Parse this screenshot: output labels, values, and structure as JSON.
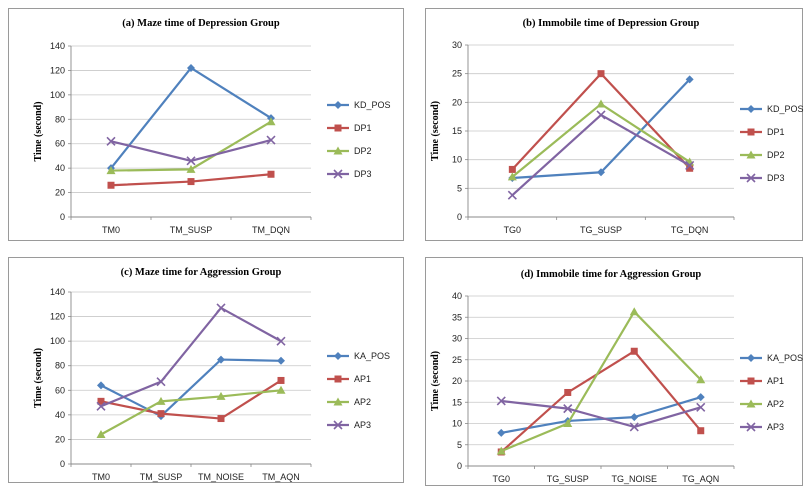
{
  "chart_data": [
    {
      "type": "line",
      "title": "(a) Maze time of Depression Group",
      "xlabel": "",
      "ylabel": "Time (second)",
      "categories": [
        "TM0",
        "TM_SUSP",
        "TM_DQN"
      ],
      "ylim": [
        0,
        140
      ],
      "yticks": [
        0,
        20,
        40,
        60,
        80,
        100,
        120,
        140
      ],
      "grid": true,
      "legend": "right",
      "series": [
        {
          "name": "KD_POS",
          "values": [
            40,
            122,
            81
          ],
          "color": "#4f81bd",
          "marker": "diamond"
        },
        {
          "name": "DP1",
          "values": [
            26,
            29,
            35
          ],
          "color": "#c0504d",
          "marker": "square"
        },
        {
          "name": "DP2",
          "values": [
            38,
            39,
            78
          ],
          "color": "#9bbb59",
          "marker": "triangle"
        },
        {
          "name": "DP3",
          "values": [
            62,
            46,
            63
          ],
          "color": "#8064a2",
          "marker": "x"
        }
      ]
    },
    {
      "type": "line",
      "title": "(b) Immobile time of Depression Group",
      "xlabel": "",
      "ylabel": "Time (second)",
      "categories": [
        "TG0",
        "TG_SUSP",
        "TG_DQN"
      ],
      "ylim": [
        0,
        30
      ],
      "yticks": [
        0,
        5,
        10,
        15,
        20,
        25,
        30
      ],
      "grid": true,
      "legend": "right",
      "series": [
        {
          "name": "KD_POS",
          "values": [
            6.8,
            7.8,
            24
          ],
          "color": "#4f81bd",
          "marker": "diamond"
        },
        {
          "name": "DP1",
          "values": [
            8.3,
            25,
            8.5
          ],
          "color": "#c0504d",
          "marker": "square"
        },
        {
          "name": "DP2",
          "values": [
            7,
            19.7,
            9.6
          ],
          "color": "#9bbb59",
          "marker": "triangle"
        },
        {
          "name": "DP3",
          "values": [
            3.8,
            17.8,
            9
          ],
          "color": "#8064a2",
          "marker": "x"
        }
      ]
    },
    {
      "type": "line",
      "title": "(c) Maze time for Aggression Group",
      "xlabel": "",
      "ylabel": "Time (second)",
      "categories": [
        "TM0",
        "TM_SUSP",
        "TM_NOISE",
        "TM_AQN"
      ],
      "ylim": [
        0,
        140
      ],
      "yticks": [
        0,
        20,
        40,
        60,
        80,
        100,
        120,
        140
      ],
      "grid": true,
      "legend": "right",
      "series": [
        {
          "name": "KA_POS",
          "values": [
            64,
            39,
            85,
            84
          ],
          "color": "#4f81bd",
          "marker": "diamond"
        },
        {
          "name": "AP1",
          "values": [
            51,
            41,
            37,
            68
          ],
          "color": "#c0504d",
          "marker": "square"
        },
        {
          "name": "AP2",
          "values": [
            24,
            51,
            55,
            60
          ],
          "color": "#9bbb59",
          "marker": "triangle"
        },
        {
          "name": "AP3",
          "values": [
            47,
            67,
            127,
            100
          ],
          "color": "#8064a2",
          "marker": "x"
        }
      ]
    },
    {
      "type": "line",
      "title": "(d) Immobile time for Aggression Group",
      "xlabel": "",
      "ylabel": "Time (second)",
      "categories": [
        "TG0",
        "TG_SUSP",
        "TG_NOISE",
        "TG_AQN"
      ],
      "ylim": [
        0,
        40
      ],
      "yticks": [
        0,
        5,
        10,
        15,
        20,
        25,
        30,
        35,
        40
      ],
      "grid": true,
      "legend": "right",
      "series": [
        {
          "name": "KA_POS",
          "values": [
            7.8,
            10.6,
            11.5,
            16.2
          ],
          "color": "#4f81bd",
          "marker": "diamond"
        },
        {
          "name": "AP1",
          "values": [
            3.3,
            17.3,
            27,
            8.3
          ],
          "color": "#c0504d",
          "marker": "square"
        },
        {
          "name": "AP2",
          "values": [
            3.5,
            10,
            36.3,
            20.3
          ],
          "color": "#9bbb59",
          "marker": "triangle"
        },
        {
          "name": "AP3",
          "values": [
            15.3,
            13.5,
            9.2,
            13.8
          ],
          "color": "#8064a2",
          "marker": "x"
        }
      ]
    }
  ]
}
